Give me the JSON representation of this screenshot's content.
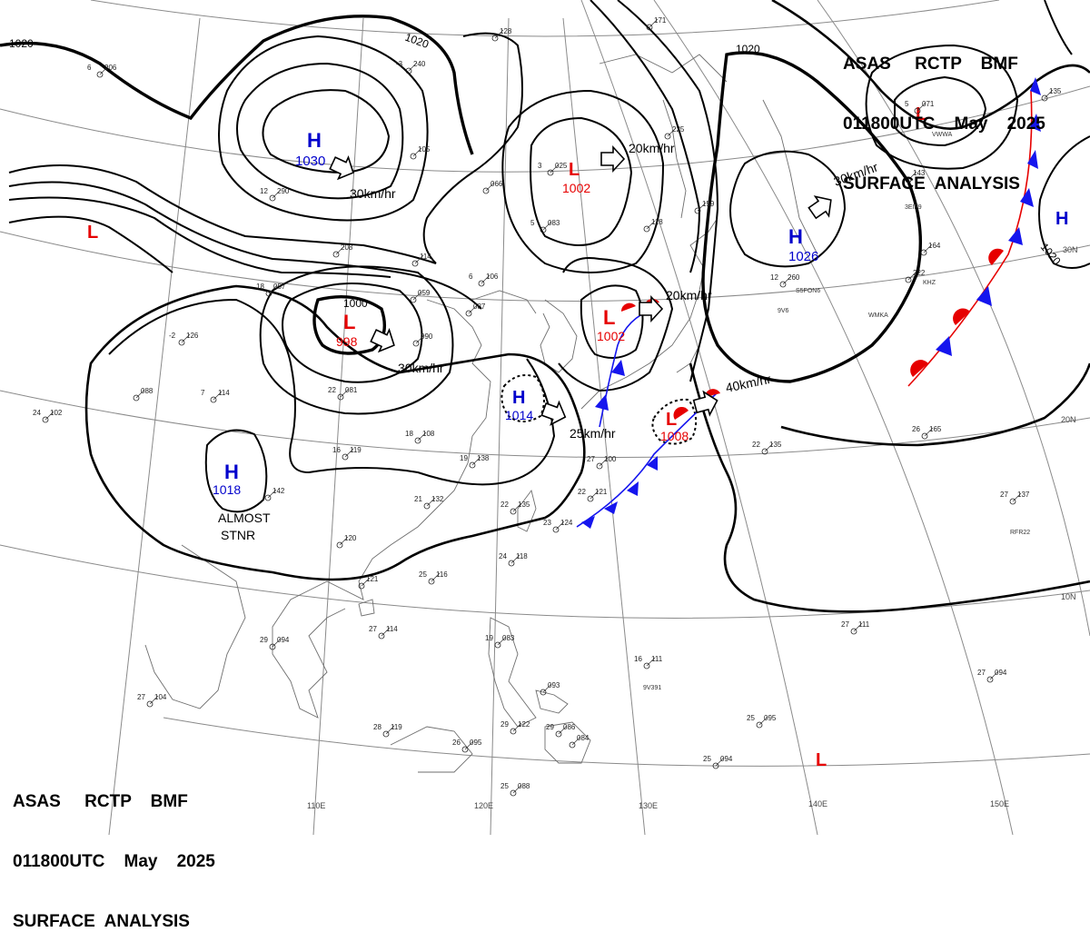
{
  "header": {
    "line1": "ASAS     RCTP    BMF",
    "line2": "011800UTC    May    2025",
    "line3": "SURFACE  ANALYSIS"
  },
  "colors": {
    "high": "#0000cc",
    "low": "#e60000",
    "cold_front": "#1515ee",
    "warm_front": "#e60000",
    "isobar": "#000000",
    "grid": "#8a8a8a",
    "coast": "#6e6e6e"
  },
  "graticule": {
    "longitudes": [
      "110E",
      "120E",
      "130E",
      "140E",
      "150E"
    ],
    "latitudes": [
      "30N",
      "20N",
      "10N"
    ]
  },
  "isobar_labels": [
    "1020",
    "1020",
    "1020",
    "1020",
    "1000"
  ],
  "pressure_centers": [
    {
      "type": "H",
      "value": "1030"
    },
    {
      "type": "L",
      "value": ""
    },
    {
      "type": "L",
      "value": "998"
    },
    {
      "type": "H",
      "value": "1018"
    },
    {
      "type": "H",
      "value": "1014"
    },
    {
      "type": "L",
      "value": "1002"
    },
    {
      "type": "L",
      "value": "1002"
    },
    {
      "type": "L",
      "value": "1008"
    },
    {
      "type": "H",
      "value": "1026"
    },
    {
      "type": "L",
      "value": ""
    },
    {
      "type": "H",
      "value": ""
    },
    {
      "type": "L",
      "value": ""
    }
  ],
  "motion_labels": [
    "30km/hr",
    "30km/hr",
    "25km/hr",
    "20km/hr",
    "20km/hr",
    "30km/hr",
    "40km/hr"
  ],
  "annotations": {
    "almost": "ALMOST",
    "stnr": "STNR"
  },
  "stations": [
    {
      "t": "6",
      "p": "206"
    },
    {
      "t": "-3",
      "p": "240"
    },
    {
      "t": "",
      "p": "128"
    },
    {
      "t": "",
      "p": "171"
    },
    {
      "t": "",
      "p": "225"
    },
    {
      "t": "12",
      "p": "290"
    },
    {
      "t": "",
      "p": "208"
    },
    {
      "t": "",
      "p": "114"
    },
    {
      "t": "",
      "p": "105"
    },
    {
      "t": "",
      "p": "066"
    },
    {
      "t": "3",
      "p": "025"
    },
    {
      "t": "5",
      "p": "083"
    },
    {
      "t": "6",
      "p": "106"
    },
    {
      "t": "18",
      "p": "057"
    },
    {
      "t": "",
      "p": "059"
    },
    {
      "t": "",
      "p": "087"
    },
    {
      "t": "",
      "p": "118"
    },
    {
      "t": "",
      "p": "159"
    },
    {
      "t": "",
      "p": "222"
    },
    {
      "t": "12",
      "p": "260"
    },
    {
      "t": "-2",
      "p": "126"
    },
    {
      "t": "",
      "p": "088"
    },
    {
      "t": "7",
      "p": "114"
    },
    {
      "t": "24",
      "p": "102"
    },
    {
      "t": "",
      "p": "090"
    },
    {
      "t": "22",
      "p": "081"
    },
    {
      "t": "18",
      "p": "108"
    },
    {
      "t": "16",
      "p": "119"
    },
    {
      "t": "19",
      "p": "138"
    },
    {
      "t": "27",
      "p": "100"
    },
    {
      "t": "21",
      "p": "132"
    },
    {
      "t": "22",
      "p": "135"
    },
    {
      "t": "22",
      "p": "121"
    },
    {
      "t": "23",
      "p": "124"
    },
    {
      "t": "24",
      "p": "118"
    },
    {
      "t": "25",
      "p": "116"
    },
    {
      "t": "",
      "p": "142"
    },
    {
      "t": "",
      "p": "120"
    },
    {
      "t": "",
      "p": "121"
    },
    {
      "t": "27",
      "p": "114"
    },
    {
      "t": "29",
      "p": "094"
    },
    {
      "t": "27",
      "p": "104"
    },
    {
      "t": "22",
      "p": "135"
    },
    {
      "t": "26",
      "p": "165"
    },
    {
      "t": "27",
      "p": "137"
    },
    {
      "t": "27",
      "p": "111"
    },
    {
      "t": "16",
      "p": "111"
    },
    {
      "t": "27",
      "p": "094"
    },
    {
      "t": "25",
      "p": "095"
    },
    {
      "t": "25",
      "p": "094"
    },
    {
      "t": "28",
      "p": "119"
    },
    {
      "t": "26",
      "p": "095"
    },
    {
      "t": "29",
      "p": "122"
    },
    {
      "t": "29",
      "p": "086"
    },
    {
      "t": "",
      "p": "084"
    },
    {
      "t": "25",
      "p": "088"
    },
    {
      "t": "19",
      "p": "083"
    },
    {
      "t": "",
      "p": "093"
    },
    {
      "t": "5",
      "p": "071"
    },
    {
      "t": "",
      "p": "143"
    },
    {
      "t": "",
      "p": "164"
    },
    {
      "t": "",
      "p": "135"
    }
  ],
  "ship_ids": [
    "3EIF9",
    "WMKA",
    "9V6",
    "S5FON6",
    "RFR22",
    "9V391",
    "VWWA",
    "KHZ"
  ]
}
